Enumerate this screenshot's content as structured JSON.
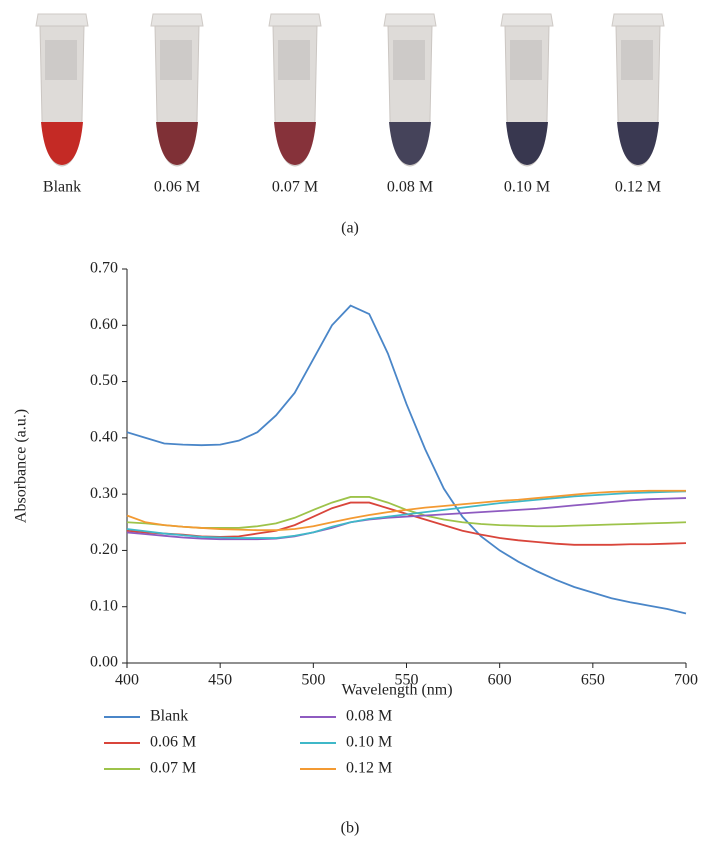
{
  "photo": {
    "labels": [
      "Blank",
      "0.06 M",
      "0.07 M",
      "0.08 M",
      "0.10 M",
      "0.12 M"
    ],
    "caption": "(a)"
  },
  "chart_data": {
    "type": "line",
    "caption": "(b)",
    "x_label": "Wavelength (nm)",
    "y_label": "Absorbance (a.u.)",
    "x": [
      400,
      410,
      420,
      430,
      440,
      450,
      460,
      470,
      480,
      490,
      500,
      510,
      520,
      530,
      540,
      550,
      560,
      570,
      580,
      590,
      600,
      610,
      620,
      630,
      640,
      650,
      660,
      670,
      680,
      690,
      700
    ],
    "series": [
      {
        "name": "Blank",
        "color": "#4a86c8",
        "values": [
          0.41,
          0.4,
          0.39,
          0.388,
          0.387,
          0.388,
          0.395,
          0.41,
          0.44,
          0.48,
          0.54,
          0.6,
          0.635,
          0.62,
          0.55,
          0.46,
          0.38,
          0.31,
          0.26,
          0.225,
          0.2,
          0.18,
          0.163,
          0.148,
          0.135,
          0.125,
          0.115,
          0.108,
          0.102,
          0.096,
          0.088
        ]
      },
      {
        "name": "0.06 M",
        "color": "#d9453b",
        "values": [
          0.235,
          0.232,
          0.23,
          0.228,
          0.225,
          0.224,
          0.225,
          0.23,
          0.235,
          0.245,
          0.26,
          0.275,
          0.285,
          0.285,
          0.275,
          0.265,
          0.255,
          0.245,
          0.235,
          0.228,
          0.222,
          0.218,
          0.215,
          0.212,
          0.21,
          0.21,
          0.21,
          0.211,
          0.211,
          0.212,
          0.213
        ]
      },
      {
        "name": "0.07 M",
        "color": "#9dc34a",
        "values": [
          0.25,
          0.248,
          0.245,
          0.242,
          0.24,
          0.24,
          0.24,
          0.243,
          0.248,
          0.258,
          0.272,
          0.285,
          0.295,
          0.295,
          0.285,
          0.272,
          0.262,
          0.255,
          0.25,
          0.247,
          0.245,
          0.244,
          0.243,
          0.243,
          0.244,
          0.245,
          0.246,
          0.247,
          0.248,
          0.249,
          0.25
        ]
      },
      {
        "name": "0.08 M",
        "color": "#8e5bc0",
        "values": [
          0.232,
          0.229,
          0.226,
          0.223,
          0.221,
          0.22,
          0.22,
          0.22,
          0.221,
          0.225,
          0.232,
          0.24,
          0.25,
          0.255,
          0.258,
          0.26,
          0.262,
          0.264,
          0.266,
          0.268,
          0.27,
          0.272,
          0.274,
          0.277,
          0.28,
          0.283,
          0.286,
          0.289,
          0.291,
          0.292,
          0.293
        ]
      },
      {
        "name": "0.10 M",
        "color": "#3fb8c8",
        "values": [
          0.238,
          0.234,
          0.23,
          0.227,
          0.224,
          0.223,
          0.222,
          0.222,
          0.222,
          0.226,
          0.232,
          0.242,
          0.25,
          0.256,
          0.26,
          0.264,
          0.268,
          0.272,
          0.276,
          0.28,
          0.284,
          0.287,
          0.29,
          0.293,
          0.296,
          0.298,
          0.3,
          0.302,
          0.303,
          0.304,
          0.305
        ]
      },
      {
        "name": "0.12 M",
        "color": "#f39a32",
        "values": [
          0.262,
          0.25,
          0.245,
          0.242,
          0.24,
          0.238,
          0.237,
          0.236,
          0.236,
          0.238,
          0.243,
          0.25,
          0.257,
          0.263,
          0.268,
          0.272,
          0.276,
          0.279,
          0.282,
          0.285,
          0.288,
          0.29,
          0.293,
          0.296,
          0.299,
          0.302,
          0.304,
          0.305,
          0.306,
          0.306,
          0.306
        ]
      }
    ],
    "xlim": [
      400,
      700
    ],
    "xticks": [
      400,
      450,
      500,
      550,
      600,
      650,
      700
    ],
    "ylim": [
      0,
      0.7
    ],
    "yticks": [
      {
        "value": 0,
        "label": "0.00"
      },
      {
        "value": 0.1,
        "label": "0.10"
      },
      {
        "value": 0.2,
        "label": "0.20"
      },
      {
        "value": 0.3,
        "label": "0.30"
      },
      {
        "value": 0.4,
        "label": "0.40"
      },
      {
        "value": 0.5,
        "label": "0.50"
      },
      {
        "value": 0.6,
        "label": "0.60"
      },
      {
        "value": 0.7,
        "label": "0.70"
      }
    ],
    "legend": "bottom"
  }
}
